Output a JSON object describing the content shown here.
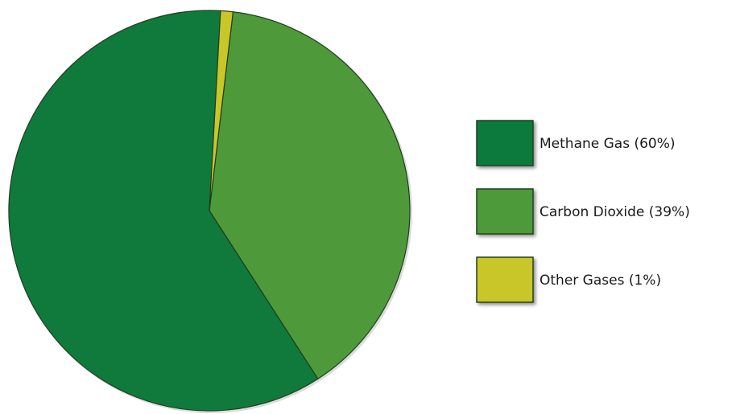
{
  "chart_data": {
    "type": "pie",
    "title": "",
    "categories": [
      "Methane Gas",
      "Carbon Dioxide",
      "Other Gases"
    ],
    "values": [
      60,
      39,
      1
    ],
    "unit": "%",
    "colors": [
      "#0f7a3c",
      "#4e9a3a",
      "#c9c62a"
    ],
    "legend": {
      "placement": "right",
      "entries": [
        "Methane Gas (60%)",
        "Carbon Dioxide (39%)",
        "Other Gases (1%)"
      ]
    }
  }
}
